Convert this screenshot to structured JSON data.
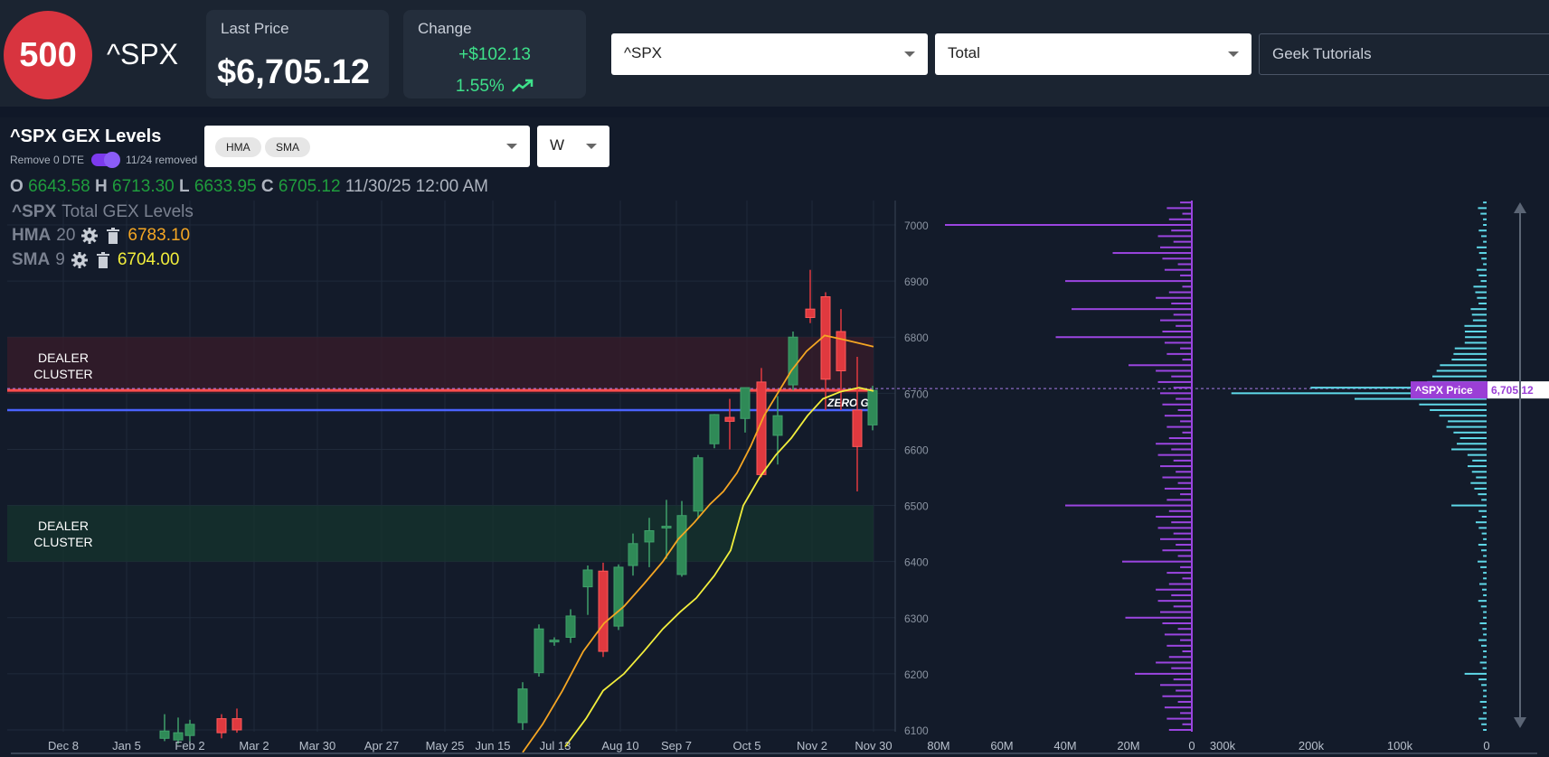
{
  "header": {
    "logo_text": "500",
    "symbol": "^SPX",
    "last_price_label": "Last Price",
    "last_price": "$6,705.12",
    "change_label": "Change",
    "change_amount": "+$102.13",
    "change_pct": "1.55%",
    "symbol_select": "^SPX",
    "gex_type_select": "Total",
    "search_placeholder": "Geek Tutorials"
  },
  "panel": {
    "title": "^SPX GEX Levels",
    "remove_0dte_label": "Remove 0 DTE",
    "removed_note": "11/24 removed",
    "indicators": [
      "HMA",
      "SMA"
    ],
    "timeframe": "W",
    "ohlc": {
      "o_label": "O",
      "o": "6643.58",
      "h_label": "H",
      "h": "6713.30",
      "l_label": "L",
      "l": "6633.95",
      "c_label": "C",
      "c": "6705.12",
      "datetime": "11/30/25 12:00 AM"
    },
    "legend": {
      "series_symbol": "^SPX",
      "series_name": "Total GEX Levels",
      "hma_label": "HMA",
      "hma_period": "20",
      "hma_value": "6783.10",
      "sma_label": "SMA",
      "sma_period": "9",
      "sma_value": "6704.00"
    },
    "zones": {
      "upper_label": [
        "DEALER",
        "CLUSTER"
      ],
      "lower_label": [
        "DEALER",
        "CLUSTER"
      ]
    },
    "zero_gamma_label": "ZERO G",
    "price_marker_label": "^SPX Price",
    "price_marker_value": "6,705.12"
  },
  "colors": {
    "up": "#2f8a57",
    "down": "#e0393f",
    "hma": "#f5a623",
    "sma": "#f2ee3c",
    "zero_gamma": "#4a63ff",
    "price_line": "#ff4d4d",
    "call_bars": "#9b45e0",
    "put_bars": "#5fd8e8",
    "change": "#3ee08a"
  },
  "chart_data": {
    "type": "candlestick",
    "x_ticks": [
      "Dec 8",
      "Jan 5",
      "Feb 2",
      "Mar 2",
      "Mar 30",
      "Apr 27",
      "May 25",
      "Jun 15",
      "Jul 13",
      "Aug 10",
      "Sep 7",
      "Oct 5",
      "Nov 2",
      "Nov 30"
    ],
    "y_ticks": [
      "7000",
      "6900",
      "6800",
      "6700",
      "6600",
      "6500",
      "6400",
      "6300",
      "6200",
      "6100"
    ],
    "ylim": [
      6095,
      7045
    ],
    "candles": [
      {
        "o": 6085,
        "h": 6128,
        "l": 6080,
        "c": 6098
      },
      {
        "o": 6082,
        "h": 6122,
        "l": 6075,
        "c": 6095
      },
      {
        "o": 6090,
        "h": 6118,
        "l": 6080,
        "c": 6110
      },
      {
        "o": 6120,
        "h": 6128,
        "l": 6085,
        "c": 6095
      },
      {
        "o": 6120,
        "h": 6138,
        "l": 6095,
        "c": 6100
      },
      {
        "o": 6113,
        "h": 6185,
        "l": 6100,
        "c": 6173
      },
      {
        "o": 6202,
        "h": 6288,
        "l": 6195,
        "c": 6280
      },
      {
        "o": 6260,
        "h": 6265,
        "l": 6250,
        "c": 6260
      },
      {
        "o": 6265,
        "h": 6315,
        "l": 6255,
        "c": 6303
      },
      {
        "o": 6355,
        "h": 6393,
        "l": 6305,
        "c": 6385
      },
      {
        "o": 6383,
        "h": 6398,
        "l": 6230,
        "c": 6240
      },
      {
        "o": 6285,
        "h": 6395,
        "l": 6278,
        "c": 6390
      },
      {
        "o": 6393,
        "h": 6450,
        "l": 6375,
        "c": 6432
      },
      {
        "o": 6435,
        "h": 6478,
        "l": 6390,
        "c": 6455
      },
      {
        "o": 6460,
        "h": 6510,
        "l": 6405,
        "c": 6463
      },
      {
        "o": 6377,
        "h": 6508,
        "l": 6373,
        "c": 6482
      },
      {
        "o": 6490,
        "h": 6590,
        "l": 6477,
        "c": 6585
      },
      {
        "o": 6610,
        "h": 6663,
        "l": 6602,
        "c": 6662
      },
      {
        "o": 6657,
        "h": 6690,
        "l": 6600,
        "c": 6650
      },
      {
        "o": 6655,
        "h": 6710,
        "l": 6630,
        "c": 6710
      },
      {
        "o": 6720,
        "h": 6745,
        "l": 6550,
        "c": 6555
      },
      {
        "o": 6625,
        "h": 6695,
        "l": 6573,
        "c": 6660
      },
      {
        "o": 6715,
        "h": 6810,
        "l": 6705,
        "c": 6800
      },
      {
        "o": 6850,
        "h": 6920,
        "l": 6825,
        "c": 6835
      },
      {
        "o": 6872,
        "h": 6880,
        "l": 6670,
        "c": 6725
      },
      {
        "o": 6810,
        "h": 6850,
        "l": 6670,
        "c": 6740
      },
      {
        "o": 6670,
        "h": 6765,
        "l": 6525,
        "c": 6605
      },
      {
        "o": 6643.58,
        "h": 6713.3,
        "l": 6633.95,
        "c": 6705.12
      }
    ],
    "hma": [
      6060,
      6110,
      6170,
      6240,
      6290,
      6320,
      6360,
      6400,
      6440,
      6470,
      6502,
      6525,
      6558,
      6605,
      6660,
      6700,
      6740,
      6775,
      6803,
      6795,
      6783.1
    ],
    "sma": [
      6070,
      6120,
      6170,
      6200,
      6240,
      6280,
      6310,
      6335,
      6375,
      6420,
      6500,
      6550,
      6590,
      6620,
      6660,
      6690,
      6703,
      6710,
      6704
    ],
    "zero_gamma": 6670,
    "upper_dealer_cluster": [
      6700,
      6800
    ],
    "lower_dealer_cluster": [
      6400,
      6500
    ],
    "call_gex_axis": [
      "80M",
      "60M",
      "40M",
      "20M",
      "0"
    ],
    "call_gex_major": [
      [
        7000,
        78000000
      ],
      [
        6950,
        25000000
      ],
      [
        6900,
        40000000
      ],
      [
        6850,
        38000000
      ],
      [
        6800,
        43000000
      ],
      [
        6750,
        20000000
      ],
      [
        6500,
        40000000
      ],
      [
        6400,
        22000000
      ],
      [
        6300,
        21000000
      ],
      [
        6200,
        18000000
      ]
    ],
    "put_gex_axis": [
      "300k",
      "200k",
      "100k",
      "0"
    ],
    "put_gex_major": [
      [
        6700,
        290000
      ],
      [
        6710,
        200000
      ],
      [
        6690,
        150000
      ],
      [
        6600,
        40000
      ],
      [
        6500,
        40000
      ],
      [
        6200,
        25000
      ]
    ]
  }
}
